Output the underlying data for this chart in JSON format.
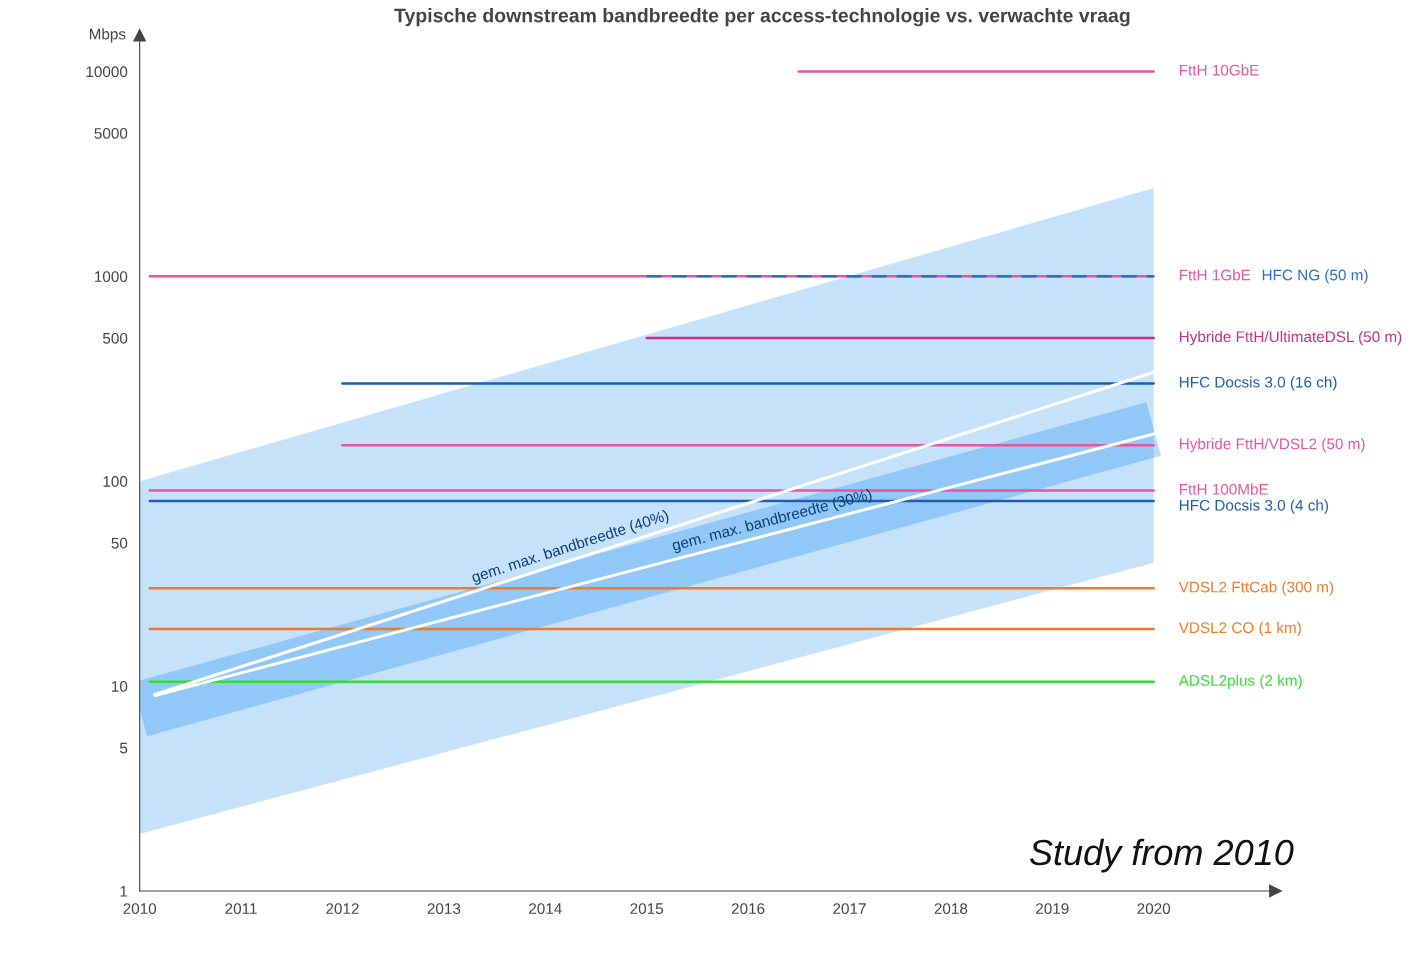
{
  "chart_data": {
    "type": "line",
    "title": "Typische downstream bandbreedte per access-technologie vs. verwachte vraag",
    "ylabel": "Mbps",
    "log": "y",
    "grid": false,
    "marker": "none",
    "xlim": [
      2010,
      2021.2
    ],
    "xticks": [
      2010,
      2011,
      2012,
      2013,
      2014,
      2015,
      2016,
      2017,
      2018,
      2019,
      2020
    ],
    "ylim": [
      1,
      15000
    ],
    "yticks": [
      1,
      5,
      10,
      50,
      100,
      500,
      1000,
      5000,
      10000
    ],
    "series": [
      {
        "type": "line",
        "color": "#1a8cf0",
        "x": [
          2010,
          2020
        ],
        "values": [
          7.7,
          180
        ],
        "lower": [
          1.9,
          40
        ],
        "upper": [
          100,
          2700
        ]
      },
      {
        "name": "FttH 10GbE",
        "color": "#e8559a",
        "x": [
          2016.5,
          2020
        ],
        "values": [
          10000,
          10000
        ]
      },
      {
        "name": "FttH 1GbE",
        "color": "#e8559a",
        "x": [
          2010.1,
          2020
        ],
        "values": [
          1000,
          1000
        ]
      },
      {
        "name": "HFC NG (50 m)",
        "color": "#2a6fc0",
        "x": [
          2015,
          2020
        ],
        "values": [
          1000,
          1000
        ],
        "line_style": "dashed"
      },
      {
        "name": "Hybride FttH/UltimateDSL (50 m)",
        "color": "#c8307f",
        "x": [
          2015,
          2020
        ],
        "values": [
          500,
          500
        ]
      },
      {
        "name": "HFC Docsis 3.0 (16 ch)",
        "color": "#1f5fa8",
        "x": [
          2012,
          2020
        ],
        "values": [
          300,
          300
        ]
      },
      {
        "name": "Hybride FttH/VDSL2 (50 m)",
        "color": "#e8559a",
        "x": [
          2012,
          2020
        ],
        "values": [
          150,
          150
        ]
      },
      {
        "name": "FttH 100MbE",
        "color": "#e8559a",
        "x": [
          2010.1,
          2020
        ],
        "values": [
          90,
          90
        ]
      },
      {
        "name": "HFC Docsis 3.0 (4 ch)",
        "color": "#1f5fa8",
        "x": [
          2010.1,
          2020
        ],
        "values": [
          80,
          80
        ]
      },
      {
        "name": "VDSL2 FttCab (300 m)",
        "color": "#f07a2a",
        "x": [
          2010.1,
          2020
        ],
        "values": [
          30,
          30
        ]
      },
      {
        "name": "VDSL2 CO (1 km)",
        "color": "#f07a2a",
        "x": [
          2010.1,
          2020
        ],
        "values": [
          19,
          19
        ]
      },
      {
        "name": "ADSL2plus (2 km)",
        "color": "#33dd33",
        "x": [
          2010.1,
          2020
        ],
        "values": [
          10.5,
          10.5
        ]
      },
      {
        "color": "#ffffff",
        "x": [
          2010.15,
          2020
        ],
        "values": [
          9.1,
          340
        ]
      },
      {
        "color": "#ffffff",
        "x": [
          2010.15,
          2020
        ],
        "values": [
          9,
          170
        ]
      }
    ],
    "annotations": [
      "gem. max. bandbreedte (40%)",
      "gem. max. bandbreedte (30%)",
      "Study from 2010"
    ]
  }
}
